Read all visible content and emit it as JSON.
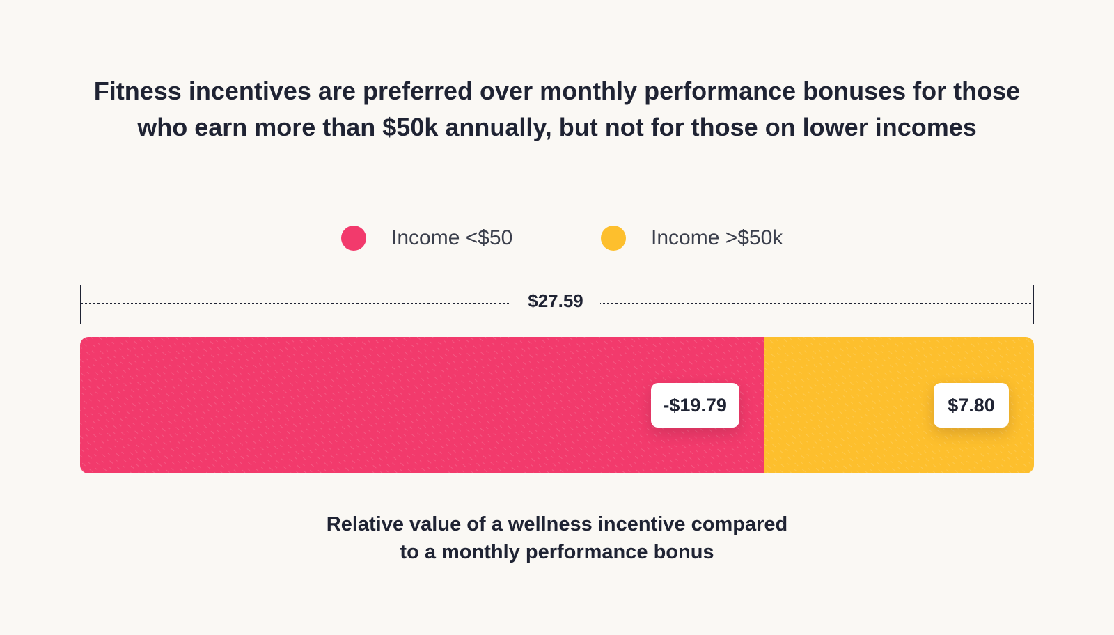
{
  "title": "Fitness incentives are preferred over monthly performance bonuses for those who earn more than $50k annually, but not for those on lower incomes",
  "caption_line1": "Relative value of a wellness incentive compared",
  "caption_line2": "to a monthly performance bonus",
  "legend": [
    {
      "label": "Income <$50",
      "color": "#f23a6c"
    },
    {
      "label": "Income >$50k",
      "color": "#fdbf2d"
    }
  ],
  "total_label": "$27.59",
  "chart_data": {
    "type": "bar",
    "orientation": "horizontal-stacked",
    "title": "Fitness incentives are preferred over monthly performance bonuses for those who earn more than $50k annually, but not for those on lower incomes",
    "xlabel": "Relative value of a wellness incentive compared to a monthly performance bonus",
    "ylabel": "",
    "total": 27.59,
    "total_label": "$27.59",
    "series": [
      {
        "name": "Income <$50",
        "value": -19.79,
        "label": "-$19.79",
        "color": "#f23a6c"
      },
      {
        "name": "Income >$50k",
        "value": 7.8,
        "label": "$7.80",
        "color": "#fdbf2d"
      }
    ],
    "legend_position": "top-center"
  }
}
